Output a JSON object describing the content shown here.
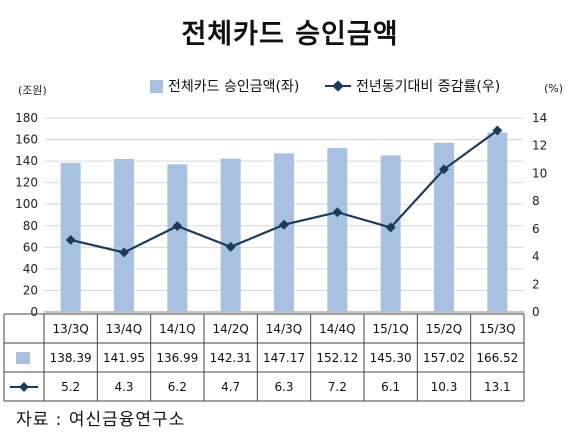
{
  "title": "전체카드 승인금액",
  "source": "자료 : 여신금융연구소",
  "colors": {
    "bar": "#a9c1e1",
    "line": "#1b3a5c",
    "grid": "#d9d9d9"
  },
  "chart_data": {
    "type": "bar",
    "categories": [
      "13/3Q",
      "13/4Q",
      "14/1Q",
      "14/2Q",
      "14/3Q",
      "14/4Q",
      "15/1Q",
      "15/2Q",
      "15/3Q"
    ],
    "series": [
      {
        "name": "전체카드 승인금액(좌)",
        "type": "bar",
        "axis": "left",
        "values": [
          138.39,
          141.95,
          136.99,
          142.31,
          147.17,
          152.12,
          145.3,
          157.02,
          166.52
        ],
        "labels": [
          "138.39",
          "141.95",
          "136.99",
          "142.31",
          "147.17",
          "152.12",
          "145.30",
          "157.02",
          "166.52"
        ]
      },
      {
        "name": "전년동기대비 증감률(우)",
        "type": "line",
        "axis": "right",
        "values": [
          5.2,
          4.3,
          6.2,
          4.7,
          6.3,
          7.2,
          6.1,
          10.3,
          13.1
        ],
        "labels": [
          "5.2",
          "4.3",
          "6.2",
          "4.7",
          "6.3",
          "7.2",
          "6.1",
          "10.3",
          "13.1"
        ]
      }
    ],
    "y_left": {
      "unit": "(조원)",
      "ylim": [
        0,
        180
      ],
      "ticks": [
        "0",
        "20",
        "40",
        "60",
        "80",
        "100",
        "120",
        "140",
        "160",
        "180"
      ]
    },
    "y_right": {
      "unit": "(%)",
      "ylim": [
        0,
        14
      ],
      "ticks": [
        "0",
        "2",
        "4",
        "6",
        "8",
        "10",
        "12",
        "14"
      ]
    },
    "legend_position": "top",
    "data_table": true
  }
}
